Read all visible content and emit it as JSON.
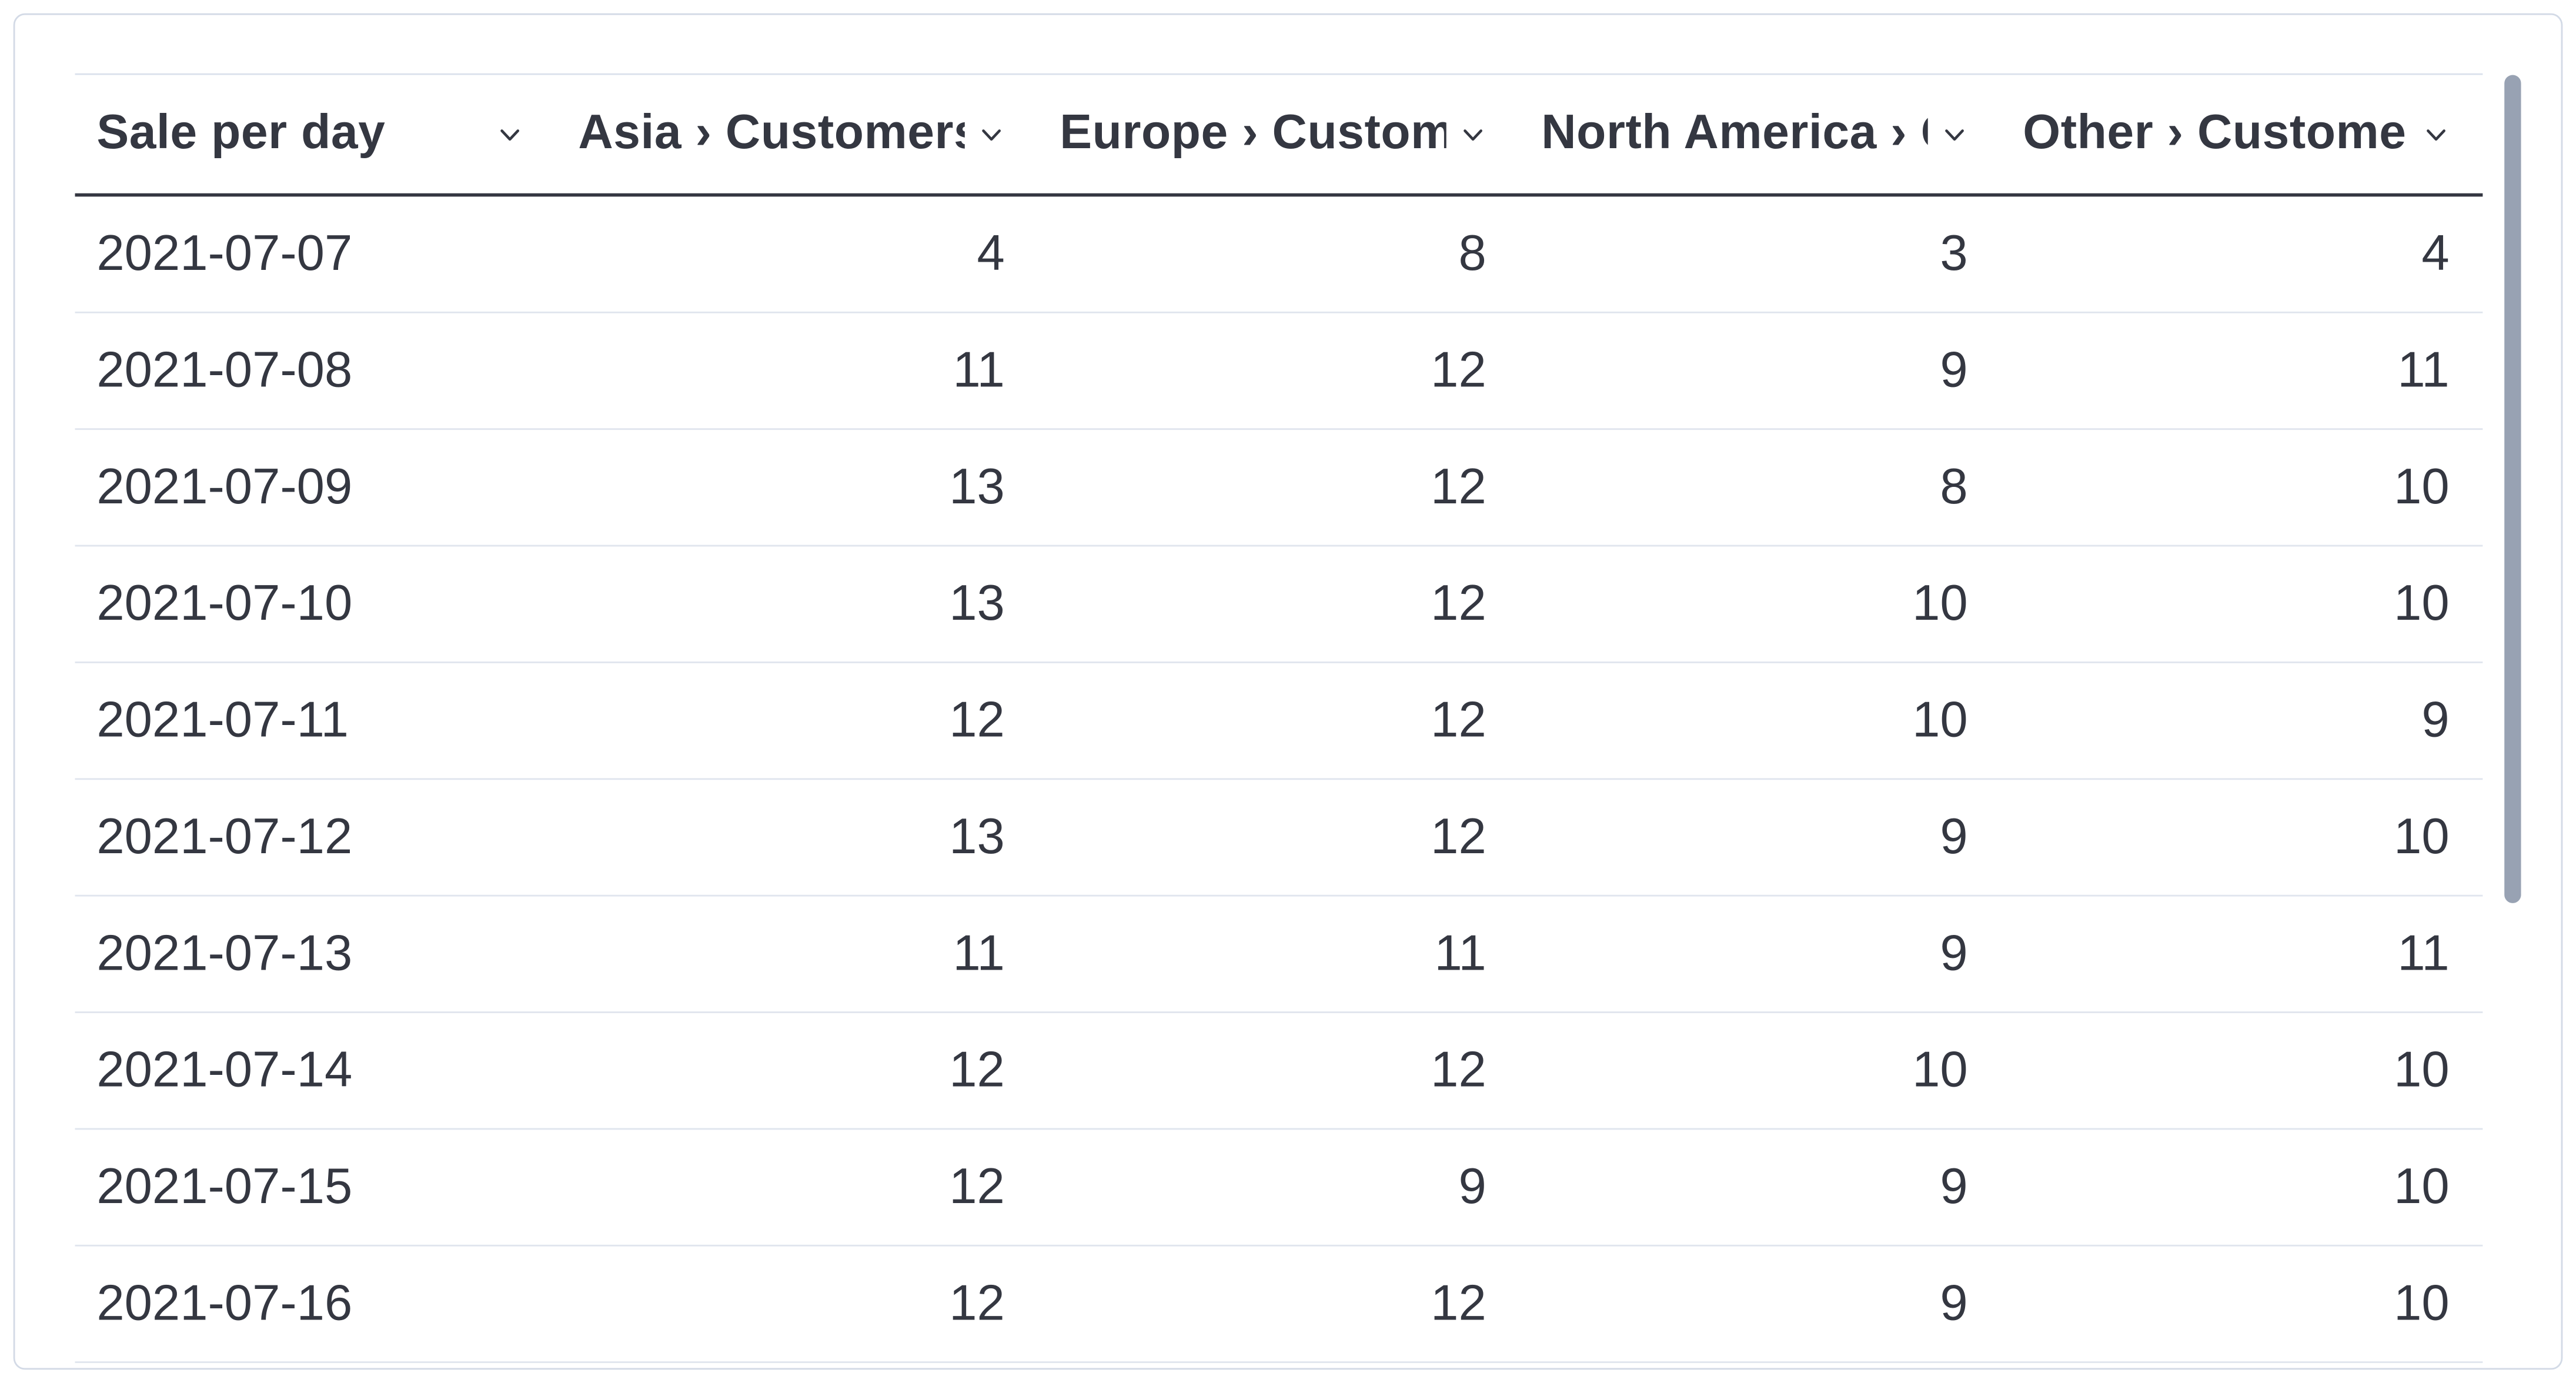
{
  "chart_data": {
    "type": "table",
    "columns": [
      "Sale per day",
      "Asia › Customers",
      "Europe › Customers",
      "North America › Customers",
      "Other › Customers"
    ],
    "column_ids": [
      "sale-per-day",
      "asia-customers",
      "europe-customers",
      "north-america-customers",
      "other-customers"
    ],
    "rows": [
      [
        "2021-07-07",
        4,
        8,
        3,
        4
      ],
      [
        "2021-07-08",
        11,
        12,
        9,
        11
      ],
      [
        "2021-07-09",
        13,
        12,
        8,
        10
      ],
      [
        "2021-07-10",
        13,
        12,
        10,
        10
      ],
      [
        "2021-07-11",
        12,
        12,
        10,
        9
      ],
      [
        "2021-07-12",
        13,
        12,
        9,
        10
      ],
      [
        "2021-07-13",
        11,
        11,
        9,
        11
      ],
      [
        "2021-07-14",
        12,
        12,
        10,
        10
      ],
      [
        "2021-07-15",
        12,
        9,
        9,
        10
      ],
      [
        "2021-07-16",
        12,
        12,
        9,
        10
      ]
    ],
    "layout": {
      "first_column_align": "left",
      "value_columns_align": "right",
      "header_sort_icon": "chevron-down-icon",
      "vertical_scrollbar": true
    }
  },
  "ui": {
    "colors": {
      "text": "#343741",
      "panel_border": "#d3dae6",
      "header_underline": "#343741",
      "row_divider": "#e0e5ee",
      "scrollbar_thumb": "#98a2b3",
      "background": "#ffffff"
    }
  }
}
